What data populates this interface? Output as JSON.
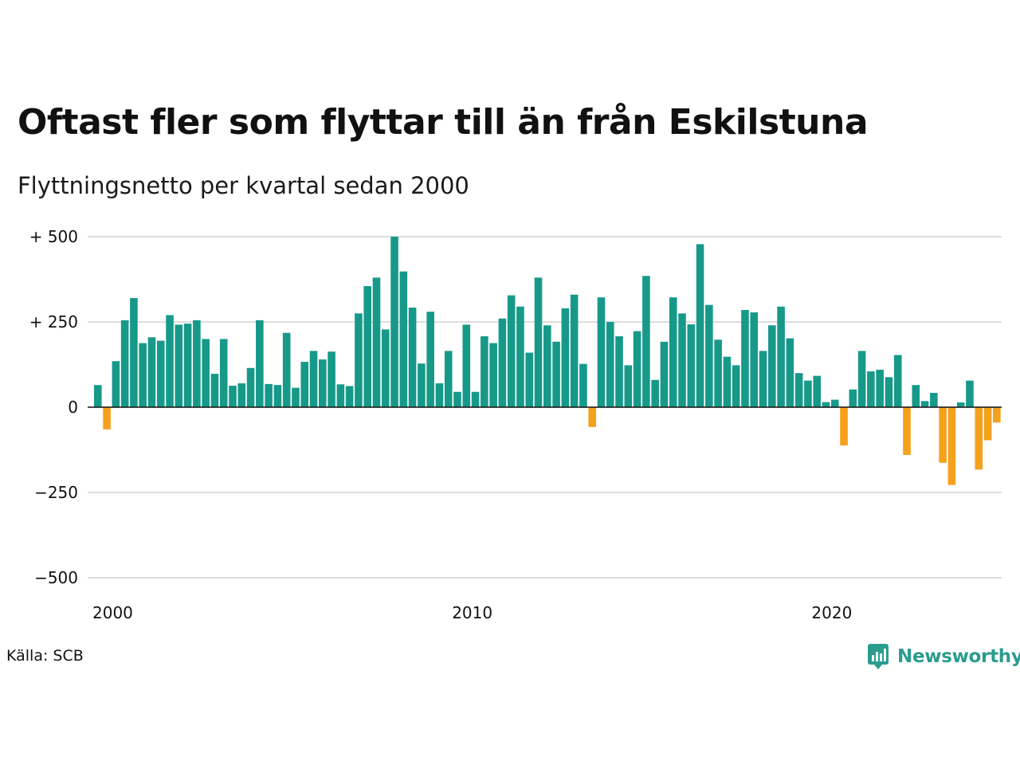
{
  "title": "Oftast fler som flyttar till än från Eskilstuna",
  "subtitle": "Flyttningsnetto per kvartal sedan 2000",
  "source": "Källa: SCB",
  "brand": {
    "name": "Newsworthy",
    "icon": "newsworthy-logo-icon",
    "color": "#2a9c8c"
  },
  "colors": {
    "positive": "#17998a",
    "negative": "#f5a11c",
    "grid": "#dddddd",
    "zero_line": "#111111"
  },
  "chart_data": {
    "type": "bar",
    "title": "Oftast fler som flyttar till än från Eskilstuna",
    "subtitle": "Flyttningsnetto per kvartal sedan 2000",
    "xlabel": "",
    "ylabel": "",
    "ylim": [
      -500,
      500
    ],
    "y_ticks": [
      500,
      250,
      0,
      -250,
      -500
    ],
    "y_tick_labels": [
      "+ 500",
      "+ 250",
      "0",
      "−250",
      "−500"
    ],
    "x_ticks": [
      2000,
      2010,
      2020
    ],
    "x_tick_labels": [
      "2000",
      "2010",
      "2020"
    ],
    "grid": true,
    "x_start": 2000,
    "periods_per_year": 4,
    "values": [
      65,
      -65,
      135,
      255,
      320,
      188,
      205,
      195,
      270,
      242,
      245,
      255,
      200,
      98,
      200,
      63,
      70,
      115,
      255,
      68,
      65,
      218,
      57,
      133,
      165,
      140,
      163,
      67,
      62,
      275,
      355,
      380,
      228,
      500,
      398,
      292,
      128,
      280,
      70,
      165,
      45,
      242,
      45,
      208,
      188,
      260,
      328,
      295,
      160,
      380,
      240,
      192,
      290,
      330,
      127,
      -58,
      322,
      250,
      208,
      123,
      223,
      385,
      80,
      192,
      322,
      275,
      243,
      478,
      300,
      198,
      148,
      123,
      285,
      278,
      165,
      240,
      295,
      202,
      100,
      78,
      92,
      15,
      22,
      -112,
      52,
      165,
      105,
      110,
      88,
      153,
      -140,
      65,
      18,
      42,
      -163,
      -228,
      14,
      78,
      -183,
      -97,
      -45
    ]
  }
}
